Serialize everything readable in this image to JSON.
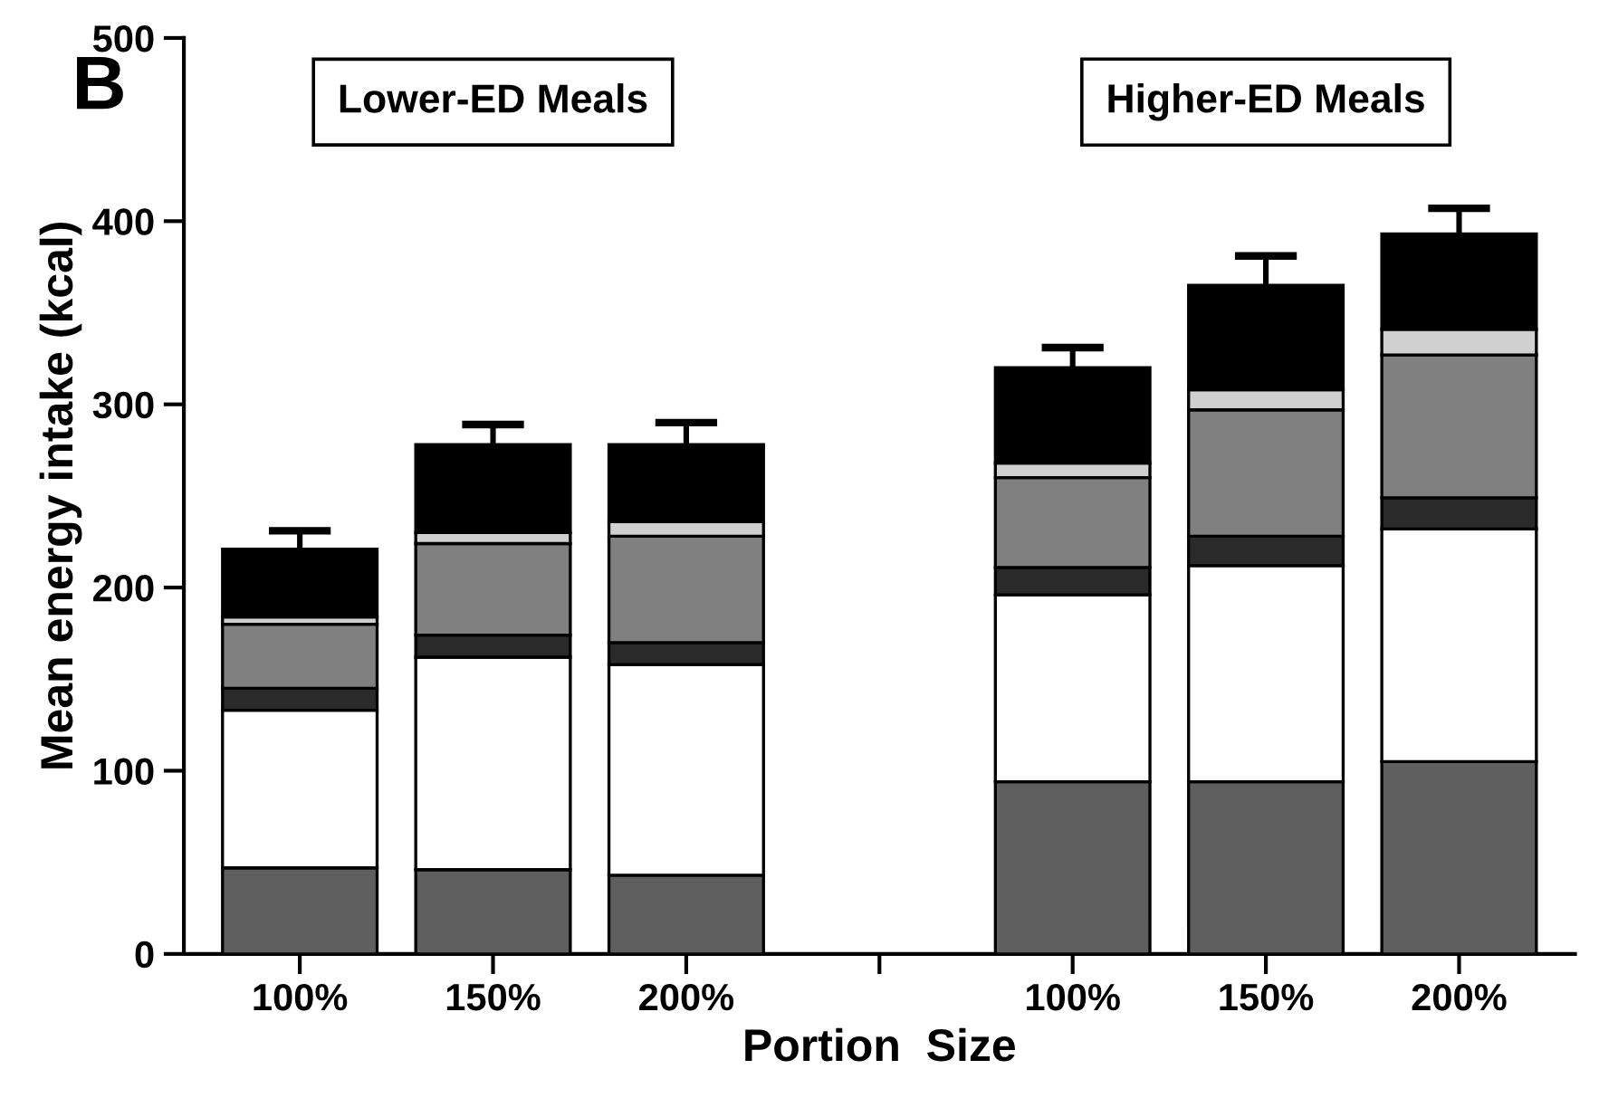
{
  "chart_data": {
    "type": "bar",
    "stacked": true,
    "categories": [
      "100%",
      "150%",
      "200%",
      null,
      "100%",
      "150%",
      "200%"
    ],
    "series": [
      {
        "color": "#5f5f5f",
        "values": [
          47,
          46,
          43,
          null,
          94,
          94,
          105
        ]
      },
      {
        "color": "#ffffff",
        "values": [
          86,
          116,
          115,
          null,
          102,
          118,
          127
        ]
      },
      {
        "color": "#2a2a2a",
        "values": [
          12,
          12,
          12,
          null,
          15,
          16,
          17
        ]
      },
      {
        "color": "#808080",
        "values": [
          35,
          50,
          58,
          null,
          49,
          69,
          78
        ]
      },
      {
        "color": "#d0d0d0",
        "values": [
          4,
          6,
          8,
          null,
          8,
          11,
          14
        ]
      },
      {
        "color": "#000000",
        "values": [
          37,
          48,
          42,
          null,
          52,
          57,
          52
        ],
        "errors": [
          [
            221,
            231
          ],
          [
            278,
            289
          ],
          [
            278,
            290
          ],
          null,
          [
            320,
            331
          ],
          [
            365,
            381
          ],
          [
            393,
            407
          ]
        ]
      }
    ],
    "xlabel": "Portion  Size",
    "ylabel": "Mean energy intake (kcal)",
    "ylim": [
      0,
      500
    ],
    "yticks": [
      0,
      100,
      200,
      300,
      400,
      500
    ],
    "annotations": [
      "B",
      "Lower-ED Meals",
      "Higher-ED Meals"
    ]
  }
}
